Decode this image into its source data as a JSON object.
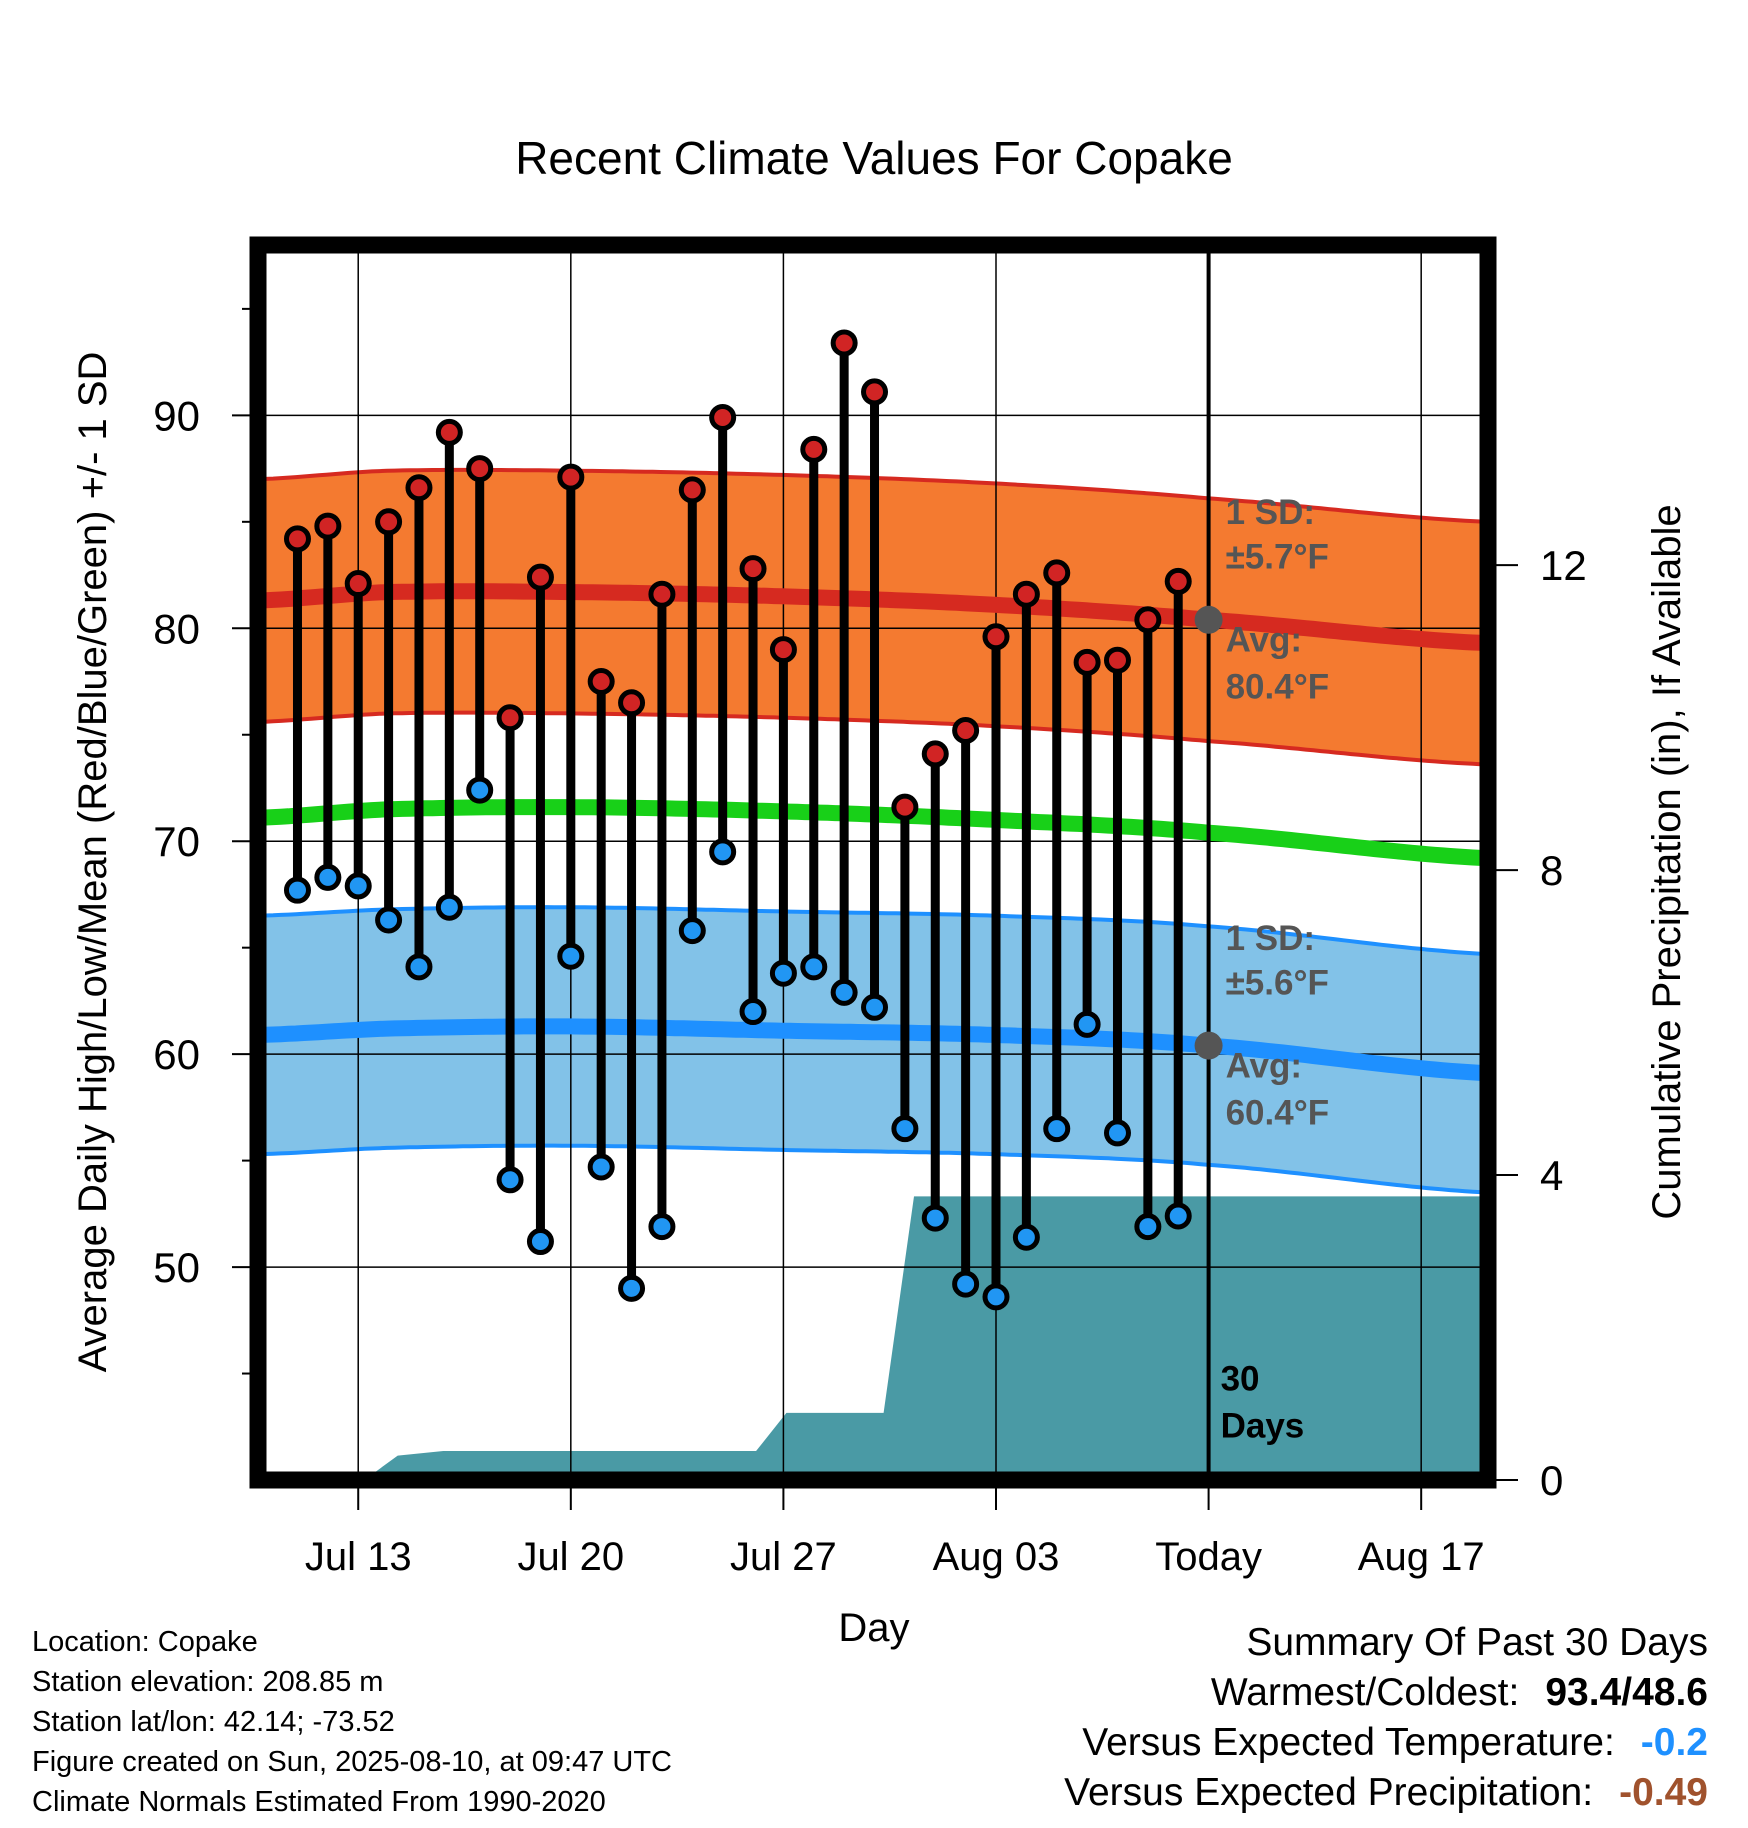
{
  "chart_data": {
    "type": "line",
    "title": "Recent Climate Values For Copake",
    "xlabel": "Day",
    "ylabel": "Average Daily High/Low/Mean (Red/Blue/Green) +/- 1 SD",
    "y2label": "Cumulative Precipitation (in), If Available",
    "ylim": [
      40,
      98
    ],
    "y2lim": [
      0,
      16.2
    ],
    "yticks": [
      50,
      60,
      70,
      80,
      90
    ],
    "y2ticks": [
      0,
      4,
      8,
      12
    ],
    "x_tick_labels": [
      "Jul 13",
      "Jul 20",
      "Jul 27",
      "Aug 03",
      "Today",
      "Aug 17"
    ],
    "x_tick_days": [
      13,
      20,
      27,
      34,
      41,
      48
    ],
    "xlim": [
      9.7,
      50.2
    ],
    "today_day": 41,
    "today_label": "30\nDays",
    "days": [
      11,
      12,
      13,
      14,
      15,
      16,
      17,
      18,
      19,
      20,
      21,
      22,
      23,
      24,
      25,
      26,
      27,
      28,
      29,
      30,
      31,
      32,
      33,
      34,
      35,
      36,
      37,
      38,
      39,
      40
    ],
    "highs": [
      84.2,
      84.8,
      82.1,
      85.0,
      86.6,
      89.2,
      87.5,
      75.8,
      82.4,
      87.1,
      77.5,
      76.5,
      81.6,
      86.5,
      89.9,
      82.8,
      79.0,
      88.4,
      93.4,
      91.1,
      71.6,
      74.1,
      75.2,
      79.6,
      81.6,
      82.6,
      78.4,
      78.5,
      80.4,
      82.2
    ],
    "lows": [
      67.7,
      68.3,
      67.9,
      66.3,
      64.1,
      66.9,
      72.4,
      54.1,
      51.2,
      64.6,
      54.7,
      49.0,
      51.9,
      65.8,
      69.5,
      62.0,
      63.8,
      64.1,
      62.9,
      62.2,
      56.5,
      52.3,
      49.2,
      48.6,
      51.4,
      56.5,
      61.4,
      56.3,
      51.9,
      52.4
    ],
    "normal_high": {
      "days": [
        9.7,
        14,
        20,
        27,
        34,
        41,
        50.2
      ],
      "mean": [
        81.3,
        81.7,
        81.7,
        81.5,
        81.1,
        80.4,
        79.3
      ],
      "sd": 5.7,
      "label_sd": "1 SD:",
      "label_sd_value": "±5.7°F",
      "label_avg": "Avg:",
      "label_avg_value": "80.4°F"
    },
    "normal_low": {
      "days": [
        9.7,
        14,
        20,
        27,
        34,
        41,
        50.2
      ],
      "mean": [
        60.9,
        61.2,
        61.3,
        61.1,
        60.9,
        60.4,
        59.1
      ],
      "sd": 5.6,
      "label_sd": "1 SD:",
      "label_sd_value": "±5.6°F",
      "label_avg": "Avg:",
      "label_avg_value": "60.4°F"
    },
    "normal_mean": {
      "days": [
        9.7,
        14,
        20,
        27,
        34,
        41,
        50.2
      ],
      "values": [
        71.1,
        71.5,
        71.6,
        71.4,
        71.0,
        70.4,
        69.2
      ]
    },
    "precip": {
      "days": [
        9.7,
        13.2,
        14.3,
        15.8,
        26.1,
        27.1,
        30.3,
        31.3,
        38.4,
        50.2
      ],
      "values": [
        0,
        0,
        0.32,
        0.38,
        0.38,
        0.88,
        0.88,
        3.72,
        3.72,
        3.72
      ]
    },
    "grid": true,
    "colors": {
      "high_band": "#f47a30",
      "high_band_edge": "#d62a20",
      "high_avg": "#d62a20",
      "low_band": "#82c2e8",
      "low_band_edge": "#1e90ff",
      "low_avg": "#1e90ff",
      "mean": "#18d018",
      "precip": "#4a9aa5",
      "high_dot": "#d12424",
      "low_dot": "#2196f3",
      "marker_gray": "#555555",
      "label_gray": "#555555"
    }
  },
  "footer": {
    "location": "Location: Copake",
    "elevation": "Station elevation: 208.85 m",
    "latlon": "Station lat/lon: 42.14; -73.52",
    "created": "Figure created on Sun, 2025-08-10, at 09:47 UTC",
    "normals": "Climate Normals Estimated From 1990-2020"
  },
  "summary": {
    "title": "Summary Of Past 30 Days",
    "warmest_label": "Warmest/Coldest:",
    "warmest_value": "93.4/48.6",
    "temp_label": "Versus Expected Temperature:",
    "temp_value": "-0.2",
    "temp_color": "#1e90ff",
    "precip_label": "Versus Expected Precipitation:",
    "precip_value": "-0.49",
    "precip_color": "#a0522d"
  }
}
